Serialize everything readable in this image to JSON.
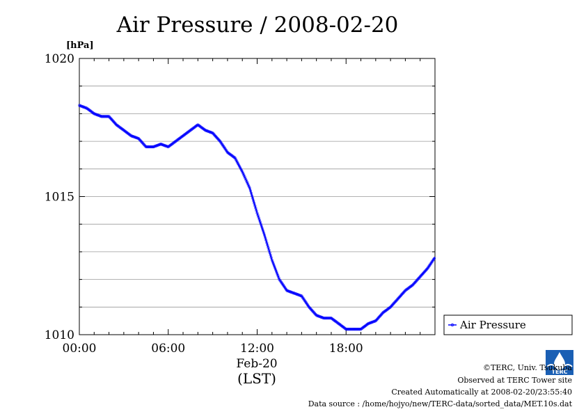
{
  "chart_data": {
    "type": "line",
    "title": "Air Pressure / 2008-02-20",
    "ylabel": "[hPa]",
    "xlabel": "(LST)",
    "date_label": "Feb-20",
    "ylim": [
      1010,
      1020
    ],
    "xlim": [
      0,
      24
    ],
    "yticks": [
      "1010",
      "1015",
      "1020"
    ],
    "xticks": [
      "00:00",
      "06:00",
      "12:00",
      "18:00"
    ],
    "grid": true,
    "legend_position": "right",
    "colors": {
      "series": "#0000ff"
    },
    "series": [
      {
        "name": "Air Pressure",
        "x": [
          0,
          0.5,
          1,
          1.5,
          2,
          2.5,
          3,
          3.5,
          4,
          4.5,
          5,
          5.5,
          6,
          6.5,
          7,
          7.5,
          8,
          8.5,
          9,
          9.5,
          10,
          10.5,
          11,
          11.5,
          12,
          12.5,
          13,
          13.5,
          14,
          14.5,
          15,
          15.5,
          16,
          16.5,
          17,
          17.5,
          18,
          18.5,
          19,
          19.5,
          20,
          20.5,
          21,
          21.5,
          22,
          22.5,
          23,
          23.5,
          24
        ],
        "values": [
          1018.3,
          1018.2,
          1018.0,
          1017.9,
          1017.9,
          1017.6,
          1017.4,
          1017.2,
          1017.1,
          1016.8,
          1016.8,
          1016.9,
          1016.8,
          1017.0,
          1017.2,
          1017.4,
          1017.6,
          1017.4,
          1017.3,
          1017.0,
          1016.6,
          1016.4,
          1015.9,
          1015.3,
          1014.4,
          1013.6,
          1012.7,
          1012.0,
          1011.6,
          1011.5,
          1011.4,
          1011.0,
          1010.7,
          1010.6,
          1010.6,
          1010.4,
          1010.2,
          1010.2,
          1010.2,
          1010.4,
          1010.5,
          1010.8,
          1011.0,
          1011.3,
          1011.6,
          1011.8,
          1012.1,
          1012.4,
          1012.8
        ]
      }
    ]
  },
  "footer": {
    "copyright": "©TERC, Univ. Tsukuba",
    "observed": "Observed at TERC Tower site",
    "created": "Created Automatically at 2008-02-20/23:55:40",
    "source": "Data source : /home/hojyo/new/TERC-data/sorted_data/MET.10s.dat"
  },
  "logo": {
    "text": "TERC"
  }
}
